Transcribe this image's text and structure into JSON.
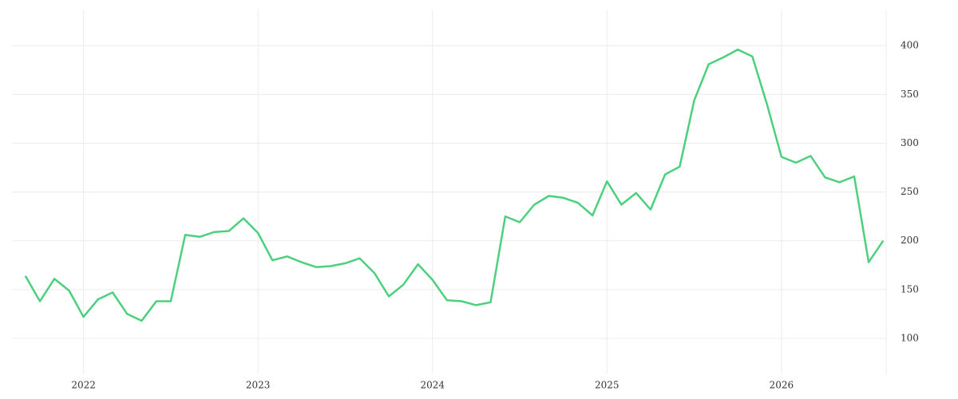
{
  "chart_data": {
    "type": "line",
    "color": "#4cd07d",
    "grid": true,
    "y_axis_side": "right",
    "x": [
      2021.667,
      2021.75,
      2021.833,
      2021.917,
      2022.0,
      2022.083,
      2022.167,
      2022.25,
      2022.333,
      2022.417,
      2022.5,
      2022.583,
      2022.667,
      2022.75,
      2022.833,
      2022.917,
      2023.0,
      2023.083,
      2023.167,
      2023.25,
      2023.333,
      2023.417,
      2023.5,
      2023.583,
      2023.667,
      2023.75,
      2023.833,
      2023.917,
      2024.0,
      2024.083,
      2024.167,
      2024.25,
      2024.333,
      2024.417,
      2024.5,
      2024.583,
      2024.667,
      2024.75,
      2024.833,
      2024.917,
      2025.0,
      2025.083,
      2025.167,
      2025.25,
      2025.333,
      2025.417,
      2025.5,
      2025.583,
      2025.667,
      2025.75,
      2025.833,
      2025.917,
      2026.0,
      2026.083,
      2026.167,
      2026.25,
      2026.333,
      2026.417,
      2026.5,
      2026.583
    ],
    "values": [
      164,
      138,
      161,
      149,
      122,
      140,
      147,
      125,
      118,
      138,
      138,
      206,
      204,
      209,
      210,
      223,
      208,
      180,
      184,
      178,
      173,
      174,
      177,
      182,
      167,
      143,
      155,
      176,
      160,
      139,
      138,
      134,
      137,
      225,
      219,
      237,
      246,
      244,
      239,
      226,
      261,
      237,
      249,
      232,
      268,
      276,
      344,
      381,
      388,
      396,
      389,
      340,
      286,
      280,
      287,
      265,
      260,
      266,
      178,
      200
    ],
    "xlim": [
      2021.59,
      2026.6
    ],
    "xticks": [
      2022,
      2023,
      2024,
      2025,
      2026
    ],
    "ylim": [
      64,
      437
    ],
    "yticks": [
      100,
      150,
      200,
      250,
      300,
      350,
      400
    ]
  }
}
